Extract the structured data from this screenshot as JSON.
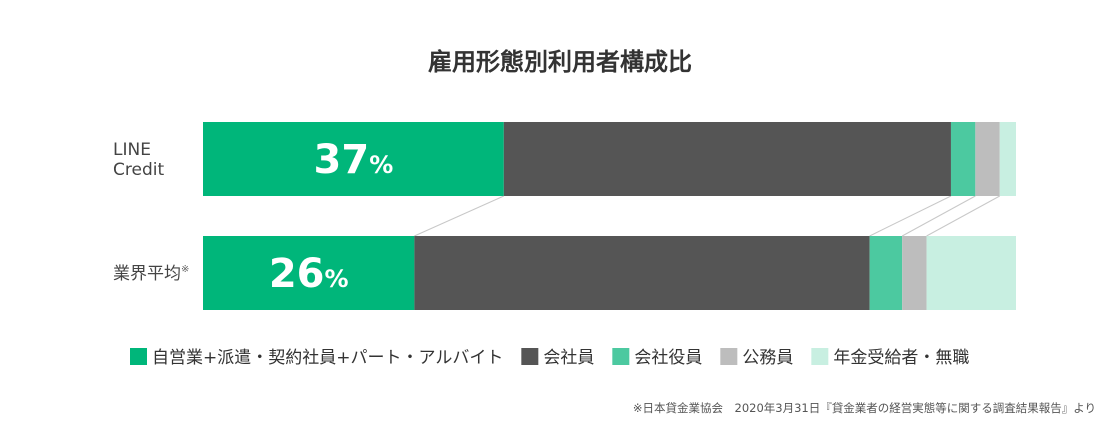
{
  "chart_data": {
    "type": "bar",
    "orientation": "horizontal",
    "stacked": true,
    "normalized": true,
    "title": "雇用形態別利用者構成比",
    "categories": [
      {
        "label_lines": [
          "LINE",
          "Credit"
        ],
        "note_mark": ""
      },
      {
        "label_lines": [
          "業界平均"
        ],
        "note_mark": "※"
      }
    ],
    "series": [
      {
        "name": "自営業+派遣・契約社員+パート・アルバイト",
        "color": "#00b67a",
        "values": [
          37,
          26
        ]
      },
      {
        "name": "会社員",
        "color": "#555555",
        "values": [
          55,
          56
        ]
      },
      {
        "name": "会社役員",
        "color": "#4cc9a0",
        "values": [
          3,
          4
        ]
      },
      {
        "name": "公務員",
        "color": "#bdbdbd",
        "values": [
          3,
          3
        ]
      },
      {
        "name": "年金受給者・無職",
        "color": "#c8efe1",
        "values": [
          2,
          11
        ]
      }
    ],
    "data_labels": [
      {
        "value": "37",
        "unit": "%"
      },
      {
        "value": "26",
        "unit": "%"
      }
    ],
    "xlim": [
      0,
      100
    ],
    "grid": false,
    "legend_position": "bottom",
    "connector_color": "#c8c8c8"
  },
  "source_note": "※日本貸金業協会　2020年3月31日『貸金業者の経営実態等に関する調査結果報告』より"
}
